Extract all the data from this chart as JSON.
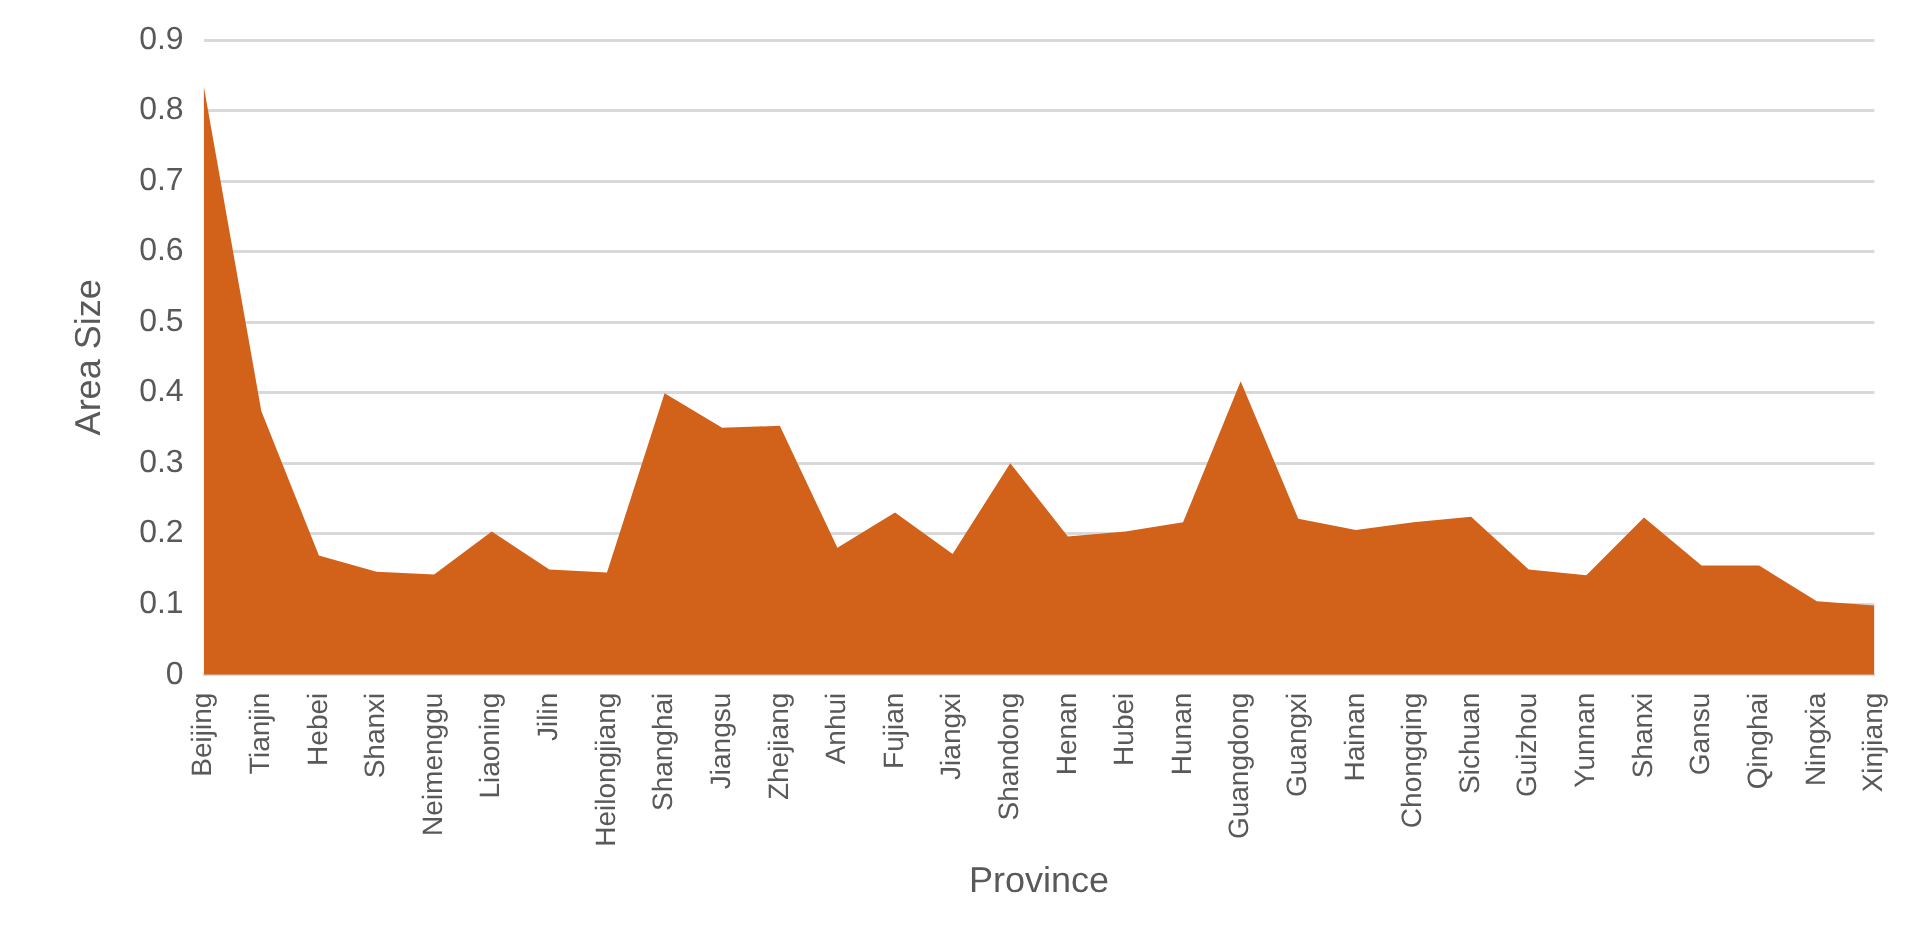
{
  "chart_data": {
    "type": "area",
    "xlabel": "Province",
    "ylabel": "Area Size",
    "categories": [
      "Beijing",
      "Tianjin",
      "Hebei",
      "Shanxi",
      "Neimenggu",
      "Liaoning",
      "Jilin",
      "Heilongjiang",
      "Shanghai",
      "Jiangsu",
      "Zhejiang",
      "Anhui",
      "Fujian",
      "Jiangxi",
      "Shandong",
      "Henan",
      "Hubei",
      "Hunan",
      "Guangdong",
      "Guangxi",
      "Hainan",
      "Chongqing",
      "Sichuan",
      "Guizhou",
      "Yunnan",
      "Shanxi",
      "Gansu",
      "Qinghai",
      "Ningxia",
      "Xinjiang"
    ],
    "values": [
      0.835,
      0.374,
      0.169,
      0.146,
      0.142,
      0.203,
      0.149,
      0.145,
      0.399,
      0.35,
      0.353,
      0.18,
      0.23,
      0.171,
      0.3,
      0.196,
      0.203,
      0.216,
      0.416,
      0.221,
      0.205,
      0.216,
      0.224,
      0.149,
      0.141,
      0.223,
      0.155,
      0.155,
      0.104,
      0.098
    ],
    "color": "#d2611a",
    "ylim": [
      0,
      0.9
    ],
    "yticks": [
      0,
      0.1,
      0.2,
      0.3,
      0.4,
      0.5,
      0.6,
      0.7,
      0.8,
      0.9
    ],
    "grid": "y",
    "legend": false
  }
}
